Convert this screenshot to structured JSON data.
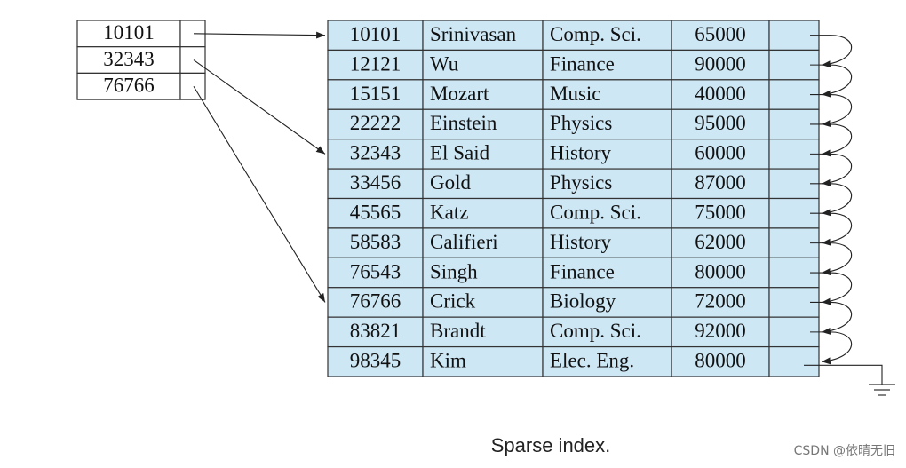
{
  "index": {
    "keys": [
      "10101",
      "32343",
      "76766"
    ]
  },
  "records": {
    "rows": [
      [
        "10101",
        "Srinivasan",
        "Comp. Sci.",
        "65000"
      ],
      [
        "12121",
        "Wu",
        "Finance",
        "90000"
      ],
      [
        "15151",
        "Mozart",
        "Music",
        "40000"
      ],
      [
        "22222",
        "Einstein",
        "Physics",
        "95000"
      ],
      [
        "32343",
        "El Said",
        "History",
        "60000"
      ],
      [
        "33456",
        "Gold",
        "Physics",
        "87000"
      ],
      [
        "45565",
        "Katz",
        "Comp. Sci.",
        "75000"
      ],
      [
        "58583",
        "Califieri",
        "History",
        "62000"
      ],
      [
        "76543",
        "Singh",
        "Finance",
        "80000"
      ],
      [
        "76766",
        "Crick",
        "Biology",
        "72000"
      ],
      [
        "83821",
        "Brandt",
        "Comp. Sci.",
        "92000"
      ],
      [
        "98345",
        "Kim",
        "Elec. Eng.",
        "80000"
      ]
    ]
  },
  "caption": "Sparse index.",
  "watermark": "CSDN @依晴无旧"
}
